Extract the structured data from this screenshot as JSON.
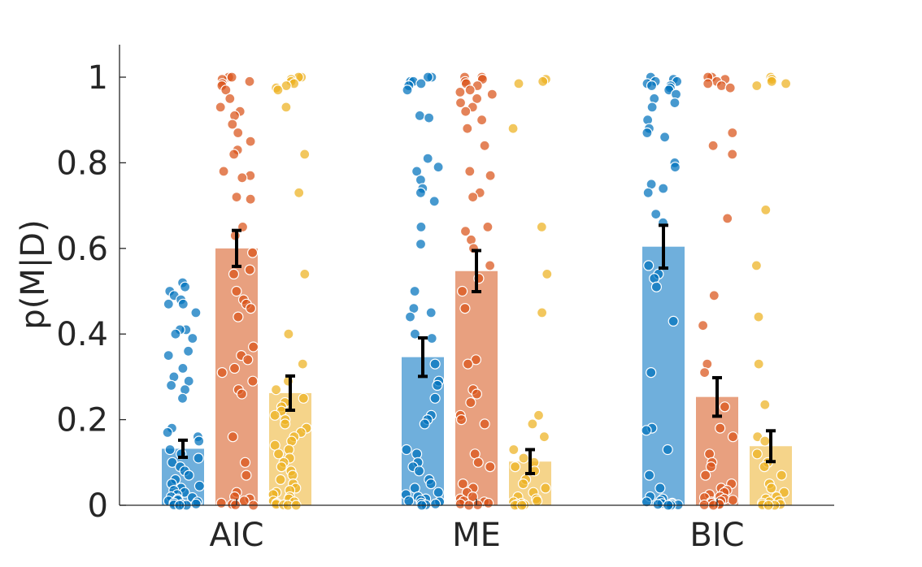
{
  "chart_data": {
    "type": "bar",
    "title": "",
    "xlabel": "",
    "ylabel": "p(M|D)",
    "ylim": [
      0,
      1.08
    ],
    "yticks": [
      0,
      0.2,
      0.4,
      0.6,
      0.8,
      1
    ],
    "ytick_labels": [
      "0",
      "0.2",
      "0.4",
      "0.6",
      "0.8",
      "1"
    ],
    "categories": [
      "AIC",
      "ME",
      "BIC"
    ],
    "grid": false,
    "legend": "none",
    "series": [
      {
        "color": "#0072BD",
        "fill": "#6FAFDC",
        "values": [
          0.132,
          0.346,
          0.604
        ],
        "errors": [
          0.02,
          0.045,
          0.05
        ],
        "points": [
          [
            0.52,
            0.51,
            0.5,
            0.49,
            0.48,
            0.47,
            0.47,
            0.45,
            0.41,
            0.41,
            0.4,
            0.39,
            0.36,
            0.35,
            0.32,
            0.3,
            0.29,
            0.28,
            0.27,
            0.25,
            0.18,
            0.17,
            0.16,
            0.15,
            0.13,
            0.12,
            0.11,
            0.1,
            0.09,
            0.08,
            0.07,
            0.06,
            0.05,
            0.045,
            0.04,
            0.035,
            0.03,
            0.025,
            0.02,
            0.018,
            0.015,
            0.012,
            0.01,
            0.008,
            0.005,
            0.003,
            0.002,
            0.001,
            0.0,
            0.0
          ],
          [
            1.0,
            1.0,
            0.99,
            0.99,
            0.985,
            0.98,
            0.97,
            0.91,
            0.905,
            0.81,
            0.79,
            0.78,
            0.76,
            0.74,
            0.73,
            0.71,
            0.65,
            0.61,
            0.5,
            0.46,
            0.45,
            0.44,
            0.4,
            0.39,
            0.33,
            0.29,
            0.28,
            0.25,
            0.21,
            0.2,
            0.19,
            0.13,
            0.12,
            0.1,
            0.09,
            0.08,
            0.06,
            0.05,
            0.04,
            0.03,
            0.025,
            0.02,
            0.015,
            0.012,
            0.01,
            0.008,
            0.005,
            0.003,
            0.001,
            0.0
          ],
          [
            1.0,
            0.995,
            0.99,
            0.99,
            0.985,
            0.98,
            0.98,
            0.975,
            0.97,
            0.96,
            0.95,
            0.94,
            0.93,
            0.9,
            0.88,
            0.87,
            0.86,
            0.8,
            0.79,
            0.75,
            0.74,
            0.73,
            0.68,
            0.66,
            0.56,
            0.54,
            0.53,
            0.51,
            0.43,
            0.31,
            0.18,
            0.175,
            0.13,
            0.07,
            0.04,
            0.02,
            0.015,
            0.01,
            0.008,
            0.005,
            0.004,
            0.003,
            0.002,
            0.001,
            0.0,
            0.0
          ]
        ]
      },
      {
        "color": "#D95319",
        "fill": "#E8A07F",
        "values": [
          0.6,
          0.547,
          0.253
        ],
        "errors": [
          0.042,
          0.048,
          0.045
        ],
        "points": [
          [
            1.0,
            1.0,
            0.995,
            0.99,
            0.985,
            0.98,
            0.97,
            0.95,
            0.93,
            0.92,
            0.91,
            0.89,
            0.87,
            0.85,
            0.83,
            0.82,
            0.78,
            0.77,
            0.765,
            0.72,
            0.715,
            0.65,
            0.63,
            0.59,
            0.55,
            0.54,
            0.5,
            0.48,
            0.47,
            0.46,
            0.44,
            0.37,
            0.35,
            0.34,
            0.32,
            0.31,
            0.29,
            0.27,
            0.26,
            0.16,
            0.1,
            0.07,
            0.03,
            0.02,
            0.015,
            0.01,
            0.005,
            0.002,
            0.001,
            0.0
          ],
          [
            1.0,
            1.0,
            0.995,
            0.99,
            0.985,
            0.98,
            0.97,
            0.965,
            0.96,
            0.95,
            0.94,
            0.93,
            0.92,
            0.9,
            0.88,
            0.84,
            0.78,
            0.77,
            0.73,
            0.72,
            0.65,
            0.64,
            0.62,
            0.6,
            0.56,
            0.53,
            0.5,
            0.46,
            0.34,
            0.33,
            0.27,
            0.26,
            0.24,
            0.21,
            0.2,
            0.19,
            0.12,
            0.1,
            0.09,
            0.05,
            0.04,
            0.03,
            0.02,
            0.015,
            0.01,
            0.008,
            0.005,
            0.003,
            0.001,
            0.0
          ],
          [
            1.0,
            1.0,
            0.995,
            0.99,
            0.985,
            0.98,
            0.975,
            0.87,
            0.84,
            0.82,
            0.67,
            0.49,
            0.42,
            0.33,
            0.31,
            0.23,
            0.18,
            0.16,
            0.12,
            0.1,
            0.09,
            0.07,
            0.05,
            0.04,
            0.035,
            0.03,
            0.025,
            0.02,
            0.018,
            0.015,
            0.012,
            0.01,
            0.008,
            0.005,
            0.003,
            0.002,
            0.001,
            0.0
          ]
        ]
      },
      {
        "color": "#EDB120",
        "fill": "#F5D48A",
        "values": [
          0.262,
          0.102,
          0.138
        ],
        "errors": [
          0.04,
          0.028,
          0.036
        ],
        "points": [
          [
            1.0,
            1.0,
            0.995,
            0.99,
            0.985,
            0.98,
            0.975,
            0.97,
            0.93,
            0.82,
            0.73,
            0.54,
            0.4,
            0.33,
            0.29,
            0.27,
            0.25,
            0.24,
            0.23,
            0.22,
            0.21,
            0.2,
            0.19,
            0.18,
            0.17,
            0.16,
            0.15,
            0.14,
            0.13,
            0.12,
            0.11,
            0.1,
            0.09,
            0.08,
            0.07,
            0.06,
            0.05,
            0.04,
            0.035,
            0.03,
            0.025,
            0.02,
            0.015,
            0.01,
            0.008,
            0.005,
            0.002,
            0.001,
            0.0,
            0.0
          ],
          [
            0.995,
            0.99,
            0.985,
            0.88,
            0.65,
            0.54,
            0.45,
            0.21,
            0.19,
            0.16,
            0.13,
            0.11,
            0.1,
            0.09,
            0.08,
            0.06,
            0.05,
            0.04,
            0.03,
            0.02,
            0.015,
            0.01,
            0.008,
            0.005,
            0.002,
            0.001,
            0.0,
            0.0
          ],
          [
            1.0,
            0.995,
            0.99,
            0.985,
            0.98,
            0.69,
            0.56,
            0.44,
            0.33,
            0.235,
            0.16,
            0.15,
            0.12,
            0.1,
            0.09,
            0.07,
            0.05,
            0.04,
            0.03,
            0.02,
            0.015,
            0.01,
            0.008,
            0.005,
            0.002,
            0.001,
            0.0,
            0.0
          ]
        ]
      }
    ]
  }
}
